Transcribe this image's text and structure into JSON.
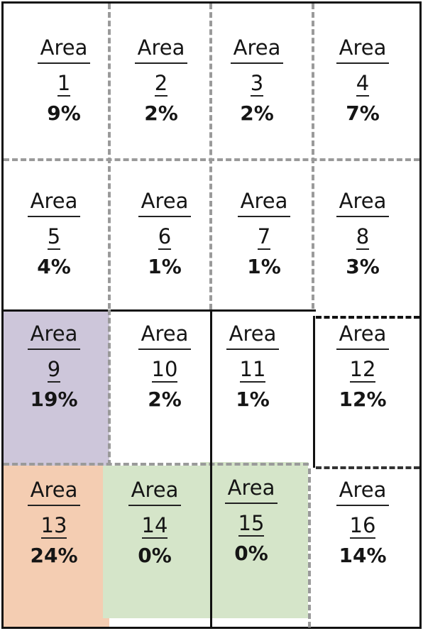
{
  "area_word": "Area",
  "areas": [
    {
      "number": "1",
      "percent": "9%"
    },
    {
      "number": "2",
      "percent": "2%"
    },
    {
      "number": "3",
      "percent": "2%"
    },
    {
      "number": "4",
      "percent": "7%"
    },
    {
      "number": "5",
      "percent": "4%"
    },
    {
      "number": "6",
      "percent": "1%"
    },
    {
      "number": "7",
      "percent": "1%"
    },
    {
      "number": "8",
      "percent": "3%"
    },
    {
      "number": "9",
      "percent": "19%"
    },
    {
      "number": "10",
      "percent": "2%"
    },
    {
      "number": "11",
      "percent": "1%"
    },
    {
      "number": "12",
      "percent": "12%"
    },
    {
      "number": "13",
      "percent": "24%"
    },
    {
      "number": "14",
      "percent": "0%"
    },
    {
      "number": "15",
      "percent": "0%"
    },
    {
      "number": "16",
      "percent": "14%"
    }
  ],
  "colors": {
    "area_9_fill": "#cdc6da",
    "area_13_fill": "#f4cdb2",
    "area_14_15_fill": "#d5e5c9",
    "dash_line": "#9a9a9a",
    "solid_line": "#111111"
  }
}
